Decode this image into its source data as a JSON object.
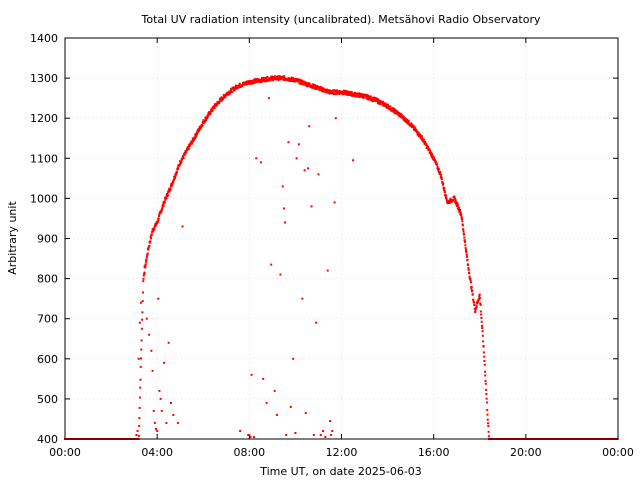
{
  "chart_data": {
    "type": "scatter",
    "title": "Total UV radiation intensity (uncalibrated). Metsähovi Radio Observatory",
    "xlabel": "Time UT, on date 2025-06-03",
    "ylabel": "Arbitrary unit",
    "xlim": [
      0,
      24
    ],
    "ylim": [
      400,
      1400
    ],
    "x_ticks": [
      0,
      4,
      8,
      12,
      16,
      20,
      24
    ],
    "x_tick_labels": [
      "00:00",
      "04:00",
      "08:00",
      "12:00",
      "16:00",
      "20:00",
      "00:00"
    ],
    "y_ticks": [
      400,
      500,
      600,
      700,
      800,
      900,
      1000,
      1100,
      1200,
      1300,
      1400
    ],
    "y_tick_labels": [
      "400",
      "500",
      "600",
      "700",
      "800",
      "900",
      "1000",
      "1100",
      "1200",
      "1300",
      "1400"
    ],
    "grid": true,
    "marker_color": "#ff0000",
    "series": [
      {
        "envelope": {
          "x": [
            0.0,
            3.2,
            3.4,
            3.6,
            3.8,
            4.0,
            4.3,
            4.6,
            5.0,
            5.5,
            6.0,
            6.5,
            7.0,
            7.5,
            8.0,
            8.5,
            9.0,
            9.5,
            10.0,
            10.5,
            11.0,
            11.5,
            12.0,
            12.5,
            13.0,
            13.5,
            14.0,
            14.5,
            15.0,
            15.5,
            16.0,
            16.3,
            16.6,
            16.9,
            17.2,
            17.5,
            17.8,
            18.0,
            18.2,
            18.4,
            18.7,
            24.0
          ],
          "y": [
            400,
            400,
            800,
            870,
            920,
            940,
            990,
            1030,
            1090,
            1140,
            1190,
            1230,
            1260,
            1280,
            1290,
            1295,
            1300,
            1300,
            1295,
            1285,
            1275,
            1265,
            1265,
            1260,
            1255,
            1245,
            1230,
            1210,
            1185,
            1150,
            1100,
            1060,
            990,
            1000,
            960,
            830,
            720,
            760,
            600,
            400,
            400,
            400
          ]
        },
        "scatter": {
          "x": [
            3.05,
            3.1,
            3.15,
            3.2,
            3.25,
            3.3,
            3.45,
            3.55,
            3.65,
            3.75,
            3.8,
            3.85,
            3.9,
            3.95,
            4.0,
            4.05,
            4.1,
            4.15,
            4.2,
            4.3,
            4.4,
            4.5,
            4.6,
            4.7,
            4.9,
            5.1,
            7.6,
            7.95,
            8.0,
            8.05,
            8.1,
            8.2,
            8.3,
            8.5,
            8.6,
            8.75,
            8.85,
            8.95,
            9.1,
            9.2,
            9.35,
            9.45,
            9.5,
            9.55,
            9.6,
            9.7,
            9.8,
            9.9,
            10.0,
            10.05,
            10.15,
            10.3,
            10.4,
            10.45,
            10.55,
            10.6,
            10.7,
            10.8,
            10.9,
            11.0,
            11.1,
            11.2,
            11.3,
            11.4,
            11.5,
            11.55,
            11.6,
            11.7,
            11.75,
            12.5
          ],
          "y": [
            400,
            410,
            420,
            600,
            690,
            740,
            830,
            700,
            660,
            620,
            570,
            470,
            440,
            425,
            420,
            750,
            520,
            500,
            470,
            590,
            440,
            640,
            490,
            460,
            440,
            930,
            420,
            410,
            410,
            405,
            560,
            405,
            1100,
            1090,
            550,
            490,
            1250,
            835,
            520,
            460,
            810,
            1030,
            975,
            940,
            410,
            1140,
            480,
            600,
            415,
            1100,
            1135,
            750,
            1070,
            465,
            1075,
            1180,
            980,
            410,
            690,
            1060,
            410,
            420,
            405,
            820,
            445,
            410,
            420,
            990,
            1200,
            1095
          ]
        }
      }
    ]
  }
}
